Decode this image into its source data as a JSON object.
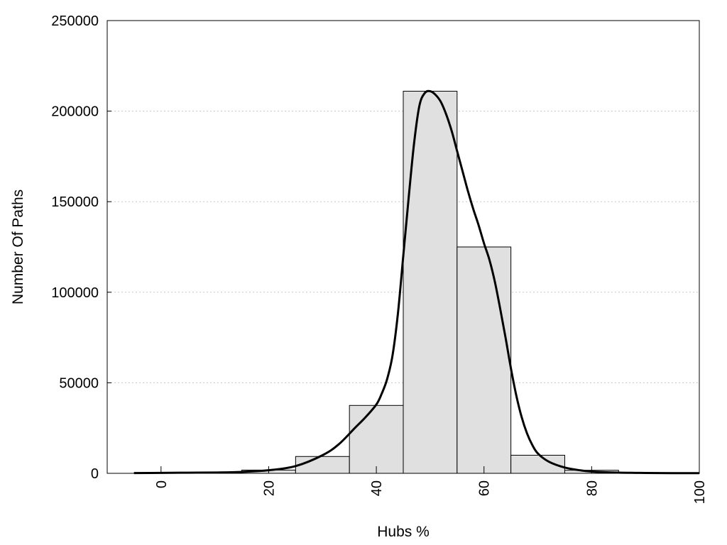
{
  "chart_data": {
    "type": "bar",
    "xlabel": "Hubs %",
    "ylabel": "Number Of Paths",
    "xlim": [
      -10,
      100
    ],
    "ylim": [
      0,
      250000
    ],
    "grid": "horizontal dotted",
    "legend": "none",
    "x_ticks": [
      0,
      20,
      40,
      60,
      80,
      100
    ],
    "y_ticks": [
      0,
      50000,
      100000,
      150000,
      200000,
      250000
    ],
    "bin_width": 10,
    "bars": [
      {
        "x": 0,
        "value": 300
      },
      {
        "x": 10,
        "value": 600
      },
      {
        "x": 20,
        "value": 1800
      },
      {
        "x": 30,
        "value": 9300
      },
      {
        "x": 40,
        "value": 37500
      },
      {
        "x": 50,
        "value": 211000
      },
      {
        "x": 60,
        "value": 125000
      },
      {
        "x": 70,
        "value": 10000
      },
      {
        "x": 80,
        "value": 1700
      },
      {
        "x": 90,
        "value": 300
      }
    ],
    "density_curve": {
      "x": [
        -5,
        0,
        5,
        10,
        15,
        20,
        25,
        30,
        33,
        36,
        38,
        40,
        41,
        42,
        43,
        44,
        45,
        46,
        47,
        48,
        49,
        50,
        51,
        52,
        53,
        54,
        55,
        56,
        57,
        58,
        59,
        60,
        61,
        62,
        63,
        64,
        65,
        66,
        67,
        68,
        69,
        70,
        72,
        75,
        78,
        80,
        85,
        90,
        95,
        100
      ],
      "y": [
        150,
        250,
        350,
        450,
        800,
        1700,
        4000,
        10000,
        16000,
        25000,
        31000,
        38000,
        44000,
        52000,
        65000,
        88000,
        120000,
        152000,
        182000,
        203000,
        210000,
        211000,
        209000,
        205000,
        198000,
        189000,
        178000,
        167000,
        156000,
        146000,
        137000,
        127000,
        118000,
        106000,
        91000,
        75000,
        58000,
        43000,
        31000,
        22000,
        15500,
        11000,
        6500,
        3200,
        1600,
        1000,
        400,
        200,
        120,
        100
      ]
    },
    "colors": {
      "bar_fill": "#e0e0e0",
      "bar_stroke": "#000000",
      "curve": "#000000",
      "grid": "#c8c8c8"
    }
  }
}
